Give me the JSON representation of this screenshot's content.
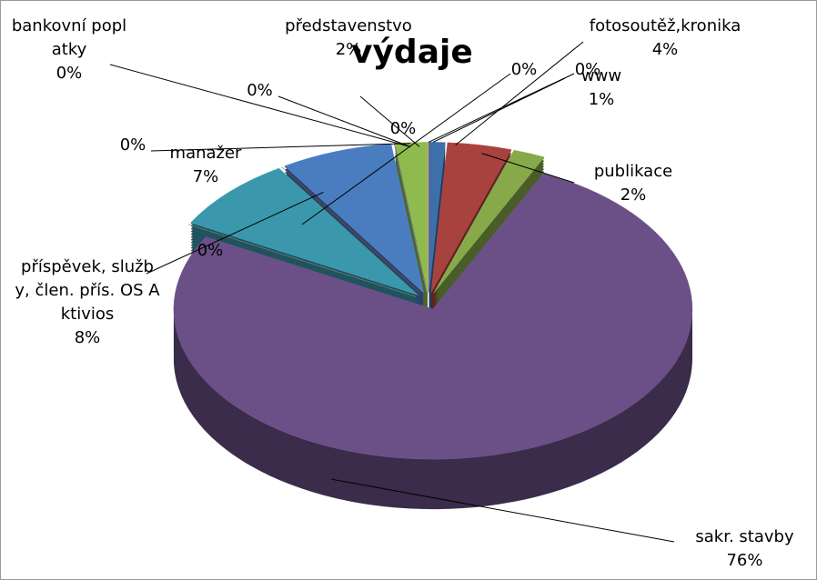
{
  "chart_data": {
    "type": "pie",
    "title": "výdaje",
    "categories": [
      "www",
      "fotosoutěž,kronika",
      "publikace",
      "sakr. stavby",
      null,
      "příspěvek, služby, člen. přís.  OS Aktivios",
      null,
      "manažer",
      null,
      "bankovní poplatky",
      null,
      "představenstvo",
      null,
      null
    ],
    "values": [
      1,
      4,
      2,
      76,
      0,
      8,
      0,
      7,
      0,
      0,
      0,
      2,
      0,
      0
    ],
    "value_labels": [
      "1%",
      "4%",
      "2%",
      "76%",
      "0%",
      "8%",
      "0%",
      "7%",
      "0%",
      "0%",
      "0%",
      "2%",
      "0%",
      "0%"
    ],
    "colors": [
      "#3d6fa8",
      "#a8423f",
      "#87a94a",
      "#6a5087",
      "#777777",
      "#3b97ab",
      "#8c4a1c",
      "#4a7cc0",
      "#6b4a8a",
      "#b03c3c",
      "#5588aa",
      "#8fba4e",
      "#2f5f95",
      "#bb4444"
    ]
  }
}
